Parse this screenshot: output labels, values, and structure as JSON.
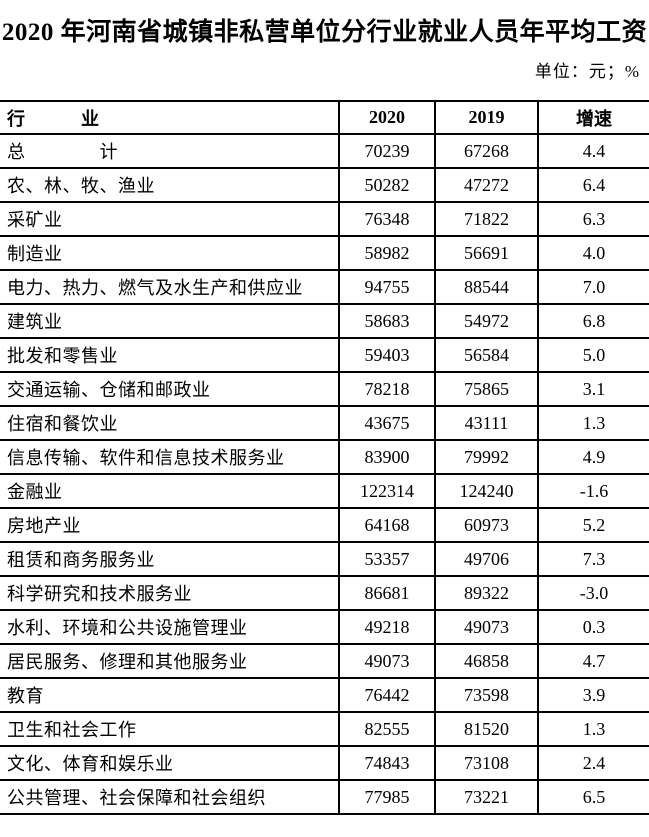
{
  "page": {
    "title": "2020 年河南省城镇非私营单位分行业就业人员年平均工资",
    "unit_note": "单位：元；%"
  },
  "table": {
    "headers": {
      "industry": "行　　　业",
      "y2020": "2020",
      "y2019": "2019",
      "growth": "增速"
    },
    "rows": [
      {
        "industry": "总　　　　计",
        "y2020": "70239",
        "y2019": "67268",
        "growth": "4.4"
      },
      {
        "industry": "农、林、牧、渔业",
        "y2020": "50282",
        "y2019": "47272",
        "growth": "6.4"
      },
      {
        "industry": "采矿业",
        "y2020": "76348",
        "y2019": "71822",
        "growth": "6.3"
      },
      {
        "industry": "制造业",
        "y2020": "58982",
        "y2019": "56691",
        "growth": "4.0"
      },
      {
        "industry": "电力、热力、燃气及水生产和供应业",
        "y2020": "94755",
        "y2019": "88544",
        "growth": "7.0"
      },
      {
        "industry": "建筑业",
        "y2020": "58683",
        "y2019": "54972",
        "growth": "6.8"
      },
      {
        "industry": "批发和零售业",
        "y2020": "59403",
        "y2019": "56584",
        "growth": "5.0"
      },
      {
        "industry": "交通运输、仓储和邮政业",
        "y2020": "78218",
        "y2019": "75865",
        "growth": "3.1"
      },
      {
        "industry": "住宿和餐饮业",
        "y2020": "43675",
        "y2019": "43111",
        "growth": "1.3"
      },
      {
        "industry": "信息传输、软件和信息技术服务业",
        "y2020": "83900",
        "y2019": "79992",
        "growth": "4.9"
      },
      {
        "industry": "金融业",
        "y2020": "122314",
        "y2019": "124240",
        "growth": "-1.6"
      },
      {
        "industry": "房地产业",
        "y2020": "64168",
        "y2019": "60973",
        "growth": "5.2"
      },
      {
        "industry": "租赁和商务服务业",
        "y2020": "53357",
        "y2019": "49706",
        "growth": "7.3"
      },
      {
        "industry": "科学研究和技术服务业",
        "y2020": "86681",
        "y2019": "89322",
        "growth": "-3.0"
      },
      {
        "industry": "水利、环境和公共设施管理业",
        "y2020": "49218",
        "y2019": "49073",
        "growth": "0.3"
      },
      {
        "industry": "居民服务、修理和其他服务业",
        "y2020": "49073",
        "y2019": "46858",
        "growth": "4.7"
      },
      {
        "industry": "教育",
        "y2020": "76442",
        "y2019": "73598",
        "growth": "3.9"
      },
      {
        "industry": "卫生和社会工作",
        "y2020": "82555",
        "y2019": "81520",
        "growth": "1.3"
      },
      {
        "industry": "文化、体育和娱乐业",
        "y2020": "74843",
        "y2019": "73108",
        "growth": "2.4"
      },
      {
        "industry": "公共管理、社会保障和社会组织",
        "y2020": "77985",
        "y2019": "73221",
        "growth": "6.5"
      }
    ]
  },
  "colors": {
    "background": "#ffffff",
    "text": "#000000",
    "border": "#000000"
  }
}
